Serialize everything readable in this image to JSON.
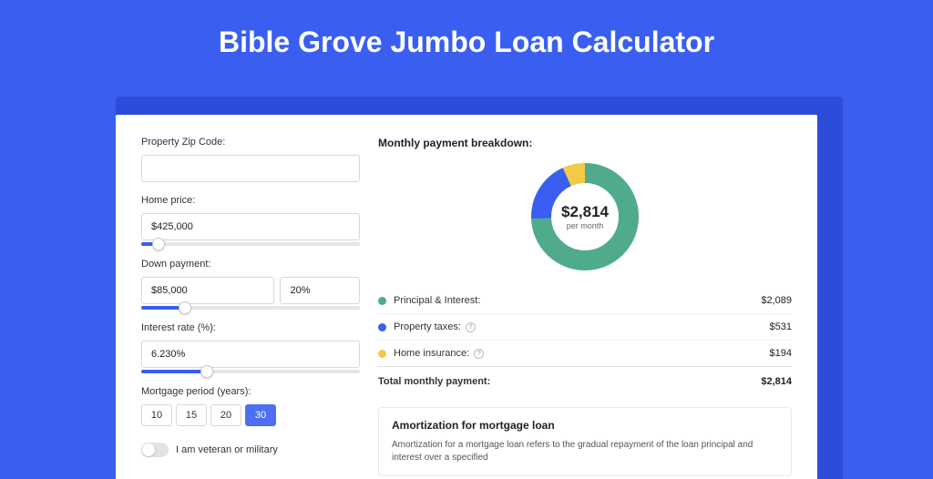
{
  "page": {
    "title": "Bible Grove Jumbo Loan Calculator"
  },
  "colors": {
    "page_bg": "#3a5ff0",
    "shadow": "#2c4cd9",
    "accent": "#3a5ff0",
    "principal": "#4fab8a",
    "taxes": "#3a5ff0",
    "insurance": "#f3c94a"
  },
  "form": {
    "zip_label": "Property Zip Code:",
    "zip_value": "",
    "home_price_label": "Home price:",
    "home_price_value": "$425,000",
    "home_price_slider_pct": 8,
    "down_label": "Down payment:",
    "down_value": "$85,000",
    "down_pct_value": "20%",
    "down_slider_pct": 20,
    "rate_label": "Interest rate (%):",
    "rate_value": "6.230%",
    "rate_slider_pct": 30,
    "period_label": "Mortgage period (years):",
    "periods": [
      "10",
      "15",
      "20",
      "30"
    ],
    "period_active_index": 3,
    "veteran_label": "I am veteran or military"
  },
  "breakdown": {
    "title": "Monthly payment breakdown:",
    "center_amount": "$2,814",
    "center_sub": "per month",
    "donut": {
      "radius": 48,
      "stroke": 22,
      "segments": [
        {
          "key": "principal",
          "value": 2089,
          "color": "#4fab8a"
        },
        {
          "key": "taxes",
          "value": 531,
          "color": "#3a5ff0"
        },
        {
          "key": "insurance",
          "value": 194,
          "color": "#f3c94a"
        }
      ]
    },
    "items": [
      {
        "label": "Principal & Interest:",
        "value": "$2,089",
        "color": "#4fab8a",
        "info": false
      },
      {
        "label": "Property taxes:",
        "value": "$531",
        "color": "#3a5ff0",
        "info": true
      },
      {
        "label": "Home insurance:",
        "value": "$194",
        "color": "#f3c94a",
        "info": true
      }
    ],
    "total_label": "Total monthly payment:",
    "total_value": "$2,814"
  },
  "amort": {
    "title": "Amortization for mortgage loan",
    "text": "Amortization for a mortgage loan refers to the gradual repayment of the loan principal and interest over a specified"
  }
}
